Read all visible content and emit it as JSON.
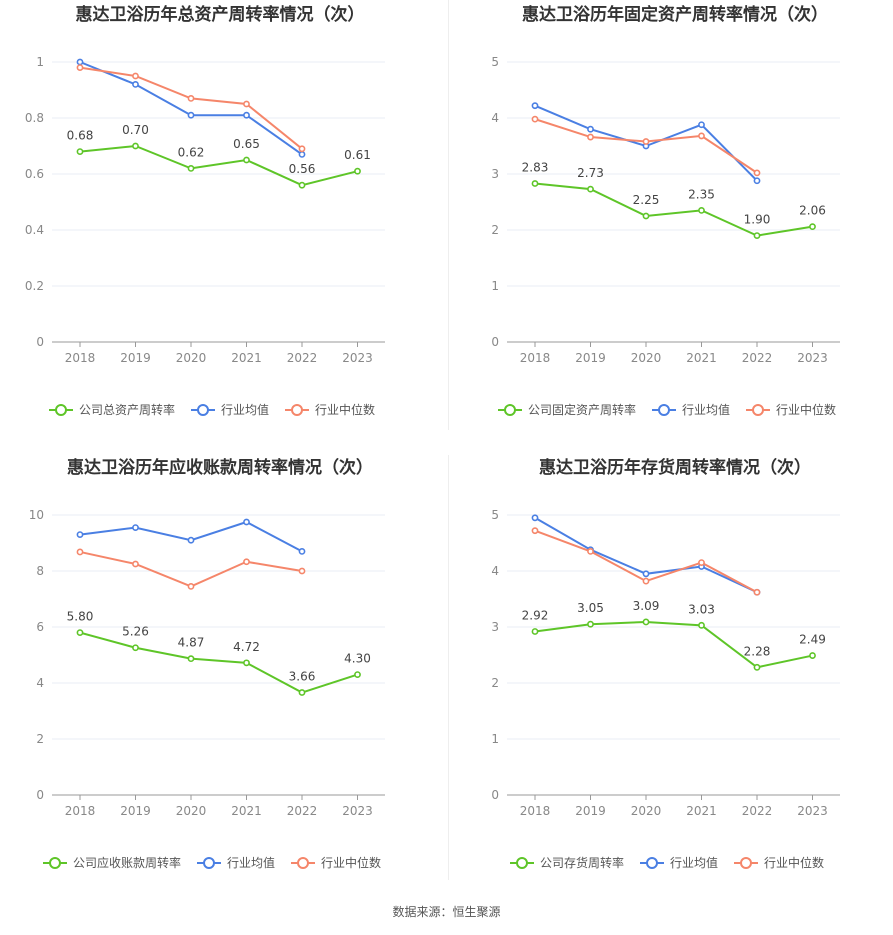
{
  "colors": {
    "company": "#5ec528",
    "avg": "#4a7fe3",
    "median": "#f5866a",
    "grid": "#e8ecf4",
    "axis": "#999999"
  },
  "source": "数据来源：恒生聚源",
  "chart_data": [
    {
      "type": "line",
      "title": "惠达卫浴历年总资产周转率情况（次）",
      "categories": [
        "2018",
        "2019",
        "2020",
        "2021",
        "2022",
        "2023"
      ],
      "ylim": [
        0,
        1
      ],
      "yticks": [
        "0",
        "0.2",
        "0.4",
        "0.6",
        "0.8",
        "1"
      ],
      "series": [
        {
          "name": "公司总资产周转率",
          "role": "company",
          "values": [
            0.68,
            0.7,
            0.62,
            0.65,
            0.56,
            0.61
          ],
          "labels": [
            "0.68",
            "0.70",
            "0.62",
            "0.65",
            "0.56",
            "0.61"
          ]
        },
        {
          "name": "行业均值",
          "role": "avg",
          "values": [
            1.0,
            0.92,
            0.81,
            0.81,
            0.67,
            null
          ]
        },
        {
          "name": "行业中位数",
          "role": "median",
          "values": [
            0.98,
            0.95,
            0.87,
            0.85,
            0.69,
            null
          ]
        }
      ]
    },
    {
      "type": "line",
      "title": "惠达卫浴历年固定资产周转率情况（次）",
      "categories": [
        "2018",
        "2019",
        "2020",
        "2021",
        "2022",
        "2023"
      ],
      "ylim": [
        0,
        5
      ],
      "yticks": [
        "0",
        "1",
        "2",
        "3",
        "4",
        "5"
      ],
      "series": [
        {
          "name": "公司固定资产周转率",
          "role": "company",
          "values": [
            2.83,
            2.73,
            2.25,
            2.35,
            1.9,
            2.06
          ],
          "labels": [
            "2.83",
            "2.73",
            "2.25",
            "2.35",
            "1.90",
            "2.06"
          ]
        },
        {
          "name": "行业均值",
          "role": "avg",
          "values": [
            4.22,
            3.8,
            3.5,
            3.88,
            2.88,
            null
          ]
        },
        {
          "name": "行业中位数",
          "role": "median",
          "values": [
            3.98,
            3.66,
            3.58,
            3.68,
            3.02,
            null
          ]
        }
      ]
    },
    {
      "type": "line",
      "title": "惠达卫浴历年应收账款周转率情况（次）",
      "categories": [
        "2018",
        "2019",
        "2020",
        "2021",
        "2022",
        "2023"
      ],
      "ylim": [
        0,
        10
      ],
      "yticks": [
        "0",
        "2",
        "4",
        "6",
        "8",
        "10"
      ],
      "series": [
        {
          "name": "公司应收账款周转率",
          "role": "company",
          "values": [
            5.8,
            5.26,
            4.87,
            4.72,
            3.66,
            4.3
          ],
          "labels": [
            "5.80",
            "5.26",
            "4.87",
            "4.72",
            "3.66",
            "4.30"
          ]
        },
        {
          "name": "行业均值",
          "role": "avg",
          "values": [
            9.3,
            9.55,
            9.1,
            9.75,
            8.7,
            null
          ]
        },
        {
          "name": "行业中位数",
          "role": "median",
          "values": [
            8.68,
            8.25,
            7.45,
            8.33,
            8.0,
            null
          ]
        }
      ]
    },
    {
      "type": "line",
      "title": "惠达卫浴历年存货周转率情况（次）",
      "categories": [
        "2018",
        "2019",
        "2020",
        "2021",
        "2022",
        "2023"
      ],
      "ylim": [
        0,
        5
      ],
      "yticks": [
        "0",
        "1",
        "2",
        "3",
        "4",
        "5"
      ],
      "series": [
        {
          "name": "公司存货周转率",
          "role": "company",
          "values": [
            2.92,
            3.05,
            3.09,
            3.03,
            2.28,
            2.49
          ],
          "labels": [
            "2.92",
            "3.05",
            "3.09",
            "3.03",
            "2.28",
            "2.49"
          ]
        },
        {
          "name": "行业均值",
          "role": "avg",
          "values": [
            4.95,
            4.38,
            3.95,
            4.08,
            3.62,
            null
          ]
        },
        {
          "name": "行业中位数",
          "role": "median",
          "values": [
            4.72,
            4.35,
            3.82,
            4.15,
            3.62,
            null
          ]
        }
      ]
    }
  ]
}
